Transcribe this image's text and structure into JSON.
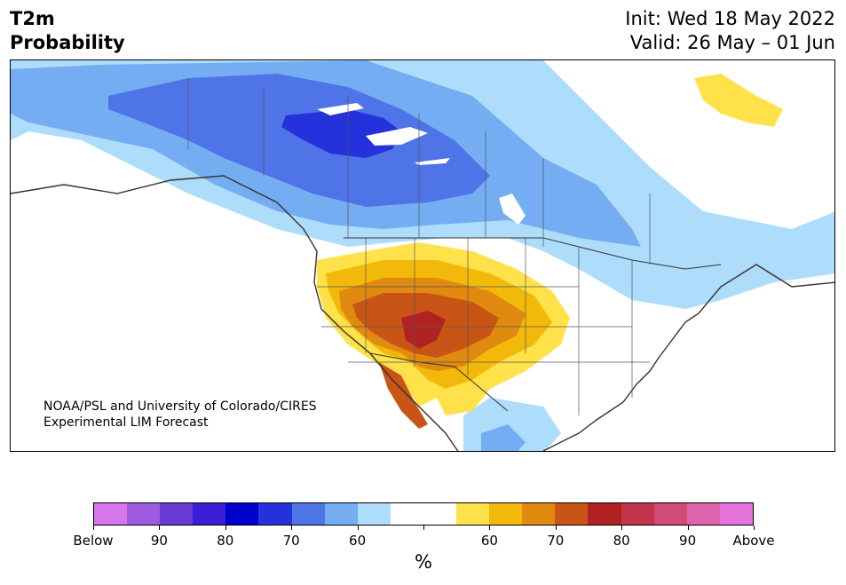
{
  "title": {
    "line1": "T2m",
    "line2": "Probability"
  },
  "dates": {
    "init": "Init: Wed 18 May 2022",
    "valid": "Valid: 26 May – 01 Jun"
  },
  "credit": {
    "line1": "NOAA/PSL and University of Colorado/CIRES",
    "line2": "Experimental LIM Forecast"
  },
  "colorbar": {
    "unit": "%",
    "colors": [
      "#d576ec",
      "#9d5ce0",
      "#6a3ad6",
      "#3a1ed6",
      "#0000cc",
      "#2432dc",
      "#4f74e8",
      "#74adf1",
      "#aedcfb",
      "#ffffff",
      "#ffffff",
      "#ffe14a",
      "#f2b90a",
      "#e08a10",
      "#c85516",
      "#b22222",
      "#c2354d",
      "#d04b78",
      "#dd63ad",
      "#e573dc"
    ],
    "tick_labels": [
      "Below",
      "90",
      "80",
      "70",
      "60",
      "",
      "60",
      "70",
      "80",
      "90",
      "Above"
    ]
  },
  "map_colors": {
    "below_60": "#aedcfb",
    "below_70": "#74adf1",
    "below_80": "#4f74e8",
    "below_90": "#2432dc",
    "above_60": "#ffe14a",
    "above_70": "#f2b90a",
    "above_80": "#e08a10",
    "above_90": "#c85516",
    "above_max": "#b22222",
    "ocean": "#ffffff",
    "borders": "#333333"
  }
}
